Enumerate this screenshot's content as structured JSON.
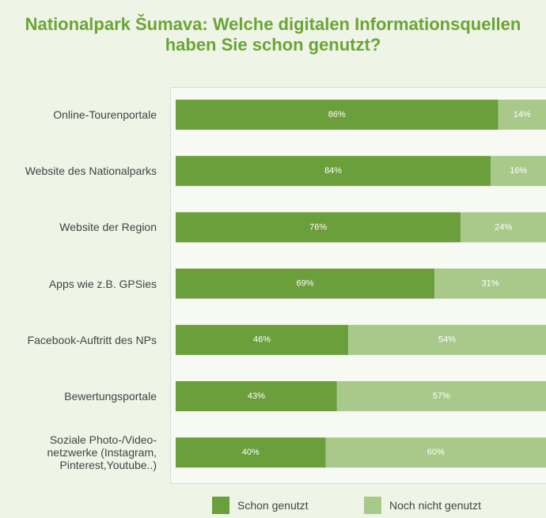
{
  "chart_data": {
    "type": "stacked-bar-horizontal",
    "title": "Nationalpark Šumava: Welche digitalen Informationsquellen haben Sie schon genutzt?",
    "categories": [
      "Online-Tourenportale",
      "Website des Nationalparks",
      "Website der Region",
      "Apps wie z.B. GPSies",
      "Facebook-Auftritt des NPs",
      "Bewertungsportale",
      "Soziale Photo-/Video- netzwerke (Instagram, Pinterest,Youtube..)"
    ],
    "series": [
      {
        "name": "Schon genutzt",
        "color": "#6b9f3b",
        "values": [
          86,
          84,
          76,
          69,
          46,
          43,
          40
        ],
        "value_labels": [
          "86%",
          "84%",
          "76%",
          "69%",
          "46%",
          "43%",
          "40%"
        ]
      },
      {
        "name": "Noch nicht genutzt",
        "color": "#a9c98b",
        "values": [
          14,
          16,
          24,
          31,
          54,
          57,
          60
        ],
        "value_labels": [
          "14%",
          "16%",
          "24%",
          "31%",
          "54%",
          "57%",
          "60%"
        ]
      }
    ]
  }
}
